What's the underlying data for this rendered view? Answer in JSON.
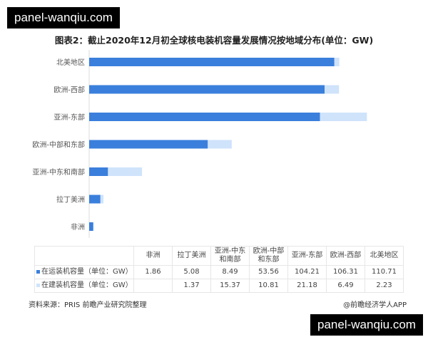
{
  "watermark": "panel-wanqiu.com",
  "chart_data": {
    "type": "bar",
    "orientation": "horizontal",
    "stacked": true,
    "title": "图表2：截止2020年12月初全球核电装机容量发展情况按地域分布(单位：GW)",
    "categories": [
      "非洲",
      "拉丁美洲",
      "亚洲-中东和南部",
      "欧洲-中部和东部",
      "亚洲-东部",
      "欧洲-西部",
      "北美地区"
    ],
    "table_headers": [
      "非洲",
      "拉丁美洲",
      "亚洲-中东\n和南部",
      "欧洲-中部\n和东部",
      "亚洲-东部",
      "欧洲-西部",
      "北美地区"
    ],
    "series": [
      {
        "name": "在运装机容量（单位：GW）",
        "color": "#3a7fdc",
        "values": [
          1.86,
          5.08,
          8.49,
          53.56,
          104.21,
          106.31,
          110.71
        ],
        "labels": [
          "1.86",
          "5.08",
          "8.49",
          "53.56",
          "104.21",
          "106.31",
          "110.71"
        ]
      },
      {
        "name": "在建装机容量（单位：GW）",
        "color": "#cfe3fb",
        "values": [
          0,
          1.37,
          15.37,
          10.81,
          21.18,
          6.49,
          2.23
        ],
        "labels": [
          "",
          "1.37",
          "15.37",
          "10.81",
          "21.18",
          "6.49",
          "2.23"
        ]
      }
    ],
    "grid": false
  },
  "footer": {
    "source": "资料来源：PRIS 前瞻产业研究院整理",
    "credit": "@前瞻经济学人APP"
  }
}
